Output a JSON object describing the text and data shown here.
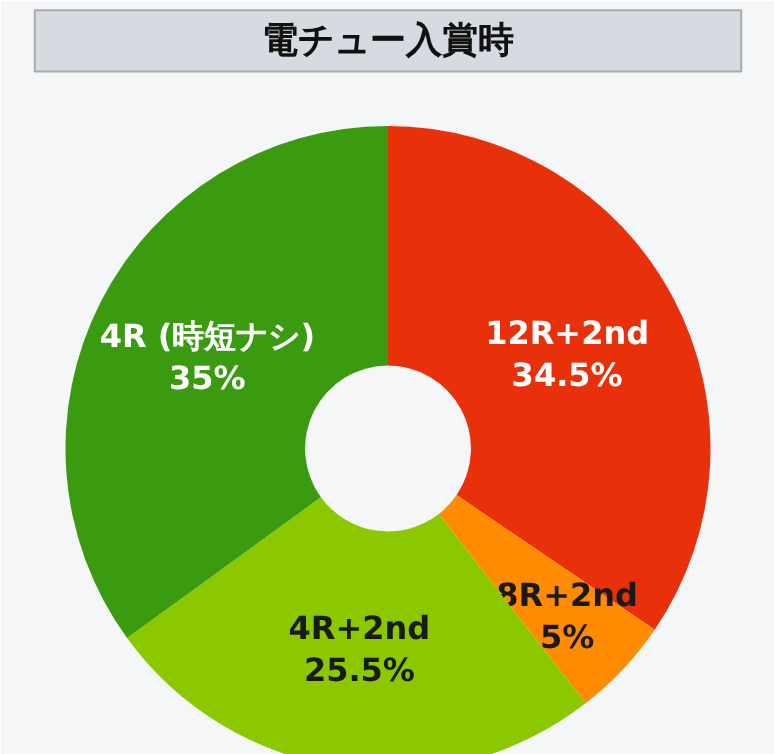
{
  "chart_data": {
    "type": "donut",
    "title": "電チュー入賞時",
    "categories": [
      "12R+2nd",
      "8R+2nd",
      "4R+2nd",
      "4R (時短ナシ)"
    ],
    "values": [
      34.5,
      5,
      25.5,
      35
    ],
    "colors": [
      "#e8300a",
      "#ff8c00",
      "#8cc800",
      "#3a9a10"
    ],
    "value_labels": [
      "34.5%",
      "5%",
      "25.5%",
      "35%"
    ]
  }
}
